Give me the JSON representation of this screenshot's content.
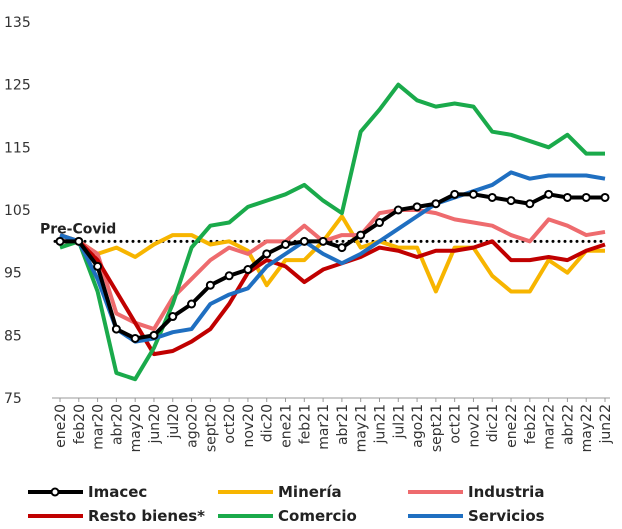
{
  "chart_data": {
    "type": "line",
    "categories": [
      "ene20",
      "feb20",
      "mar20",
      "abr20",
      "may20",
      "jun20",
      "jul20",
      "ago20",
      "sept20",
      "oct20",
      "nov20",
      "dic20",
      "ene21",
      "feb21",
      "mar21",
      "abr21",
      "may21",
      "jun21",
      "jul21",
      "ago21",
      "sept21",
      "oct21",
      "nov21",
      "dic21",
      "ene22",
      "feb22",
      "mar22",
      "abr22",
      "may22",
      "jun22"
    ],
    "series": [
      {
        "name": "Minería",
        "color": "#f7b500",
        "values": [
          101,
          100,
          98,
          99,
          97.5,
          99.5,
          101,
          101,
          99.5,
          100,
          98.5,
          93,
          97,
          97,
          100,
          104,
          99,
          100,
          99,
          99,
          92,
          99,
          99,
          94.5,
          92,
          92,
          97,
          95,
          98.5,
          98.5
        ]
      },
      {
        "name": "Industria",
        "color": "#ee6b6e",
        "values": [
          101,
          100,
          98,
          88.5,
          87,
          86,
          91,
          94,
          97,
          99,
          98,
          100,
          100,
          102.5,
          100,
          101,
          101,
          104.5,
          105,
          105,
          104.5,
          103.5,
          103,
          102.5,
          101,
          100,
          103.5,
          102.5,
          101,
          101.5
        ]
      },
      {
        "name": "Resto bienes*",
        "color": "#c00000",
        "values": [
          100,
          100,
          97,
          92,
          87,
          82,
          82.5,
          84,
          86,
          90,
          95,
          97,
          96,
          93.5,
          95.5,
          96.5,
          97.5,
          99,
          98.5,
          97.5,
          98.5,
          98.5,
          99,
          100,
          97,
          97,
          97.5,
          97,
          98.5,
          99.5
        ]
      },
      {
        "name": "Comercio",
        "color": "#1aaa4b",
        "values": [
          99,
          100,
          92,
          79,
          78,
          83,
          90,
          99,
          102.5,
          103,
          105.5,
          106.5,
          107.5,
          109,
          106.5,
          104.5,
          117.5,
          121,
          125,
          122.5,
          121.5,
          122,
          121.5,
          117.5,
          117,
          116,
          115,
          117,
          114,
          114
        ]
      },
      {
        "name": "Servicios",
        "color": "#1f6fc1",
        "values": [
          101,
          100,
          94,
          86,
          84,
          84.5,
          85.5,
          86,
          90,
          91.5,
          92.5,
          96,
          98,
          100,
          98,
          96.5,
          98,
          100,
          102,
          104,
          106,
          107,
          108,
          109,
          111,
          110,
          110.5,
          110.5,
          110.5,
          110
        ]
      },
      {
        "name": "Imacec",
        "color": "#000000",
        "markers": true,
        "values": [
          100,
          100,
          96,
          86,
          84.5,
          85,
          88,
          90,
          93,
          94.5,
          95.5,
          98,
          99.5,
          100,
          100,
          99,
          101,
          103,
          105,
          105.5,
          106,
          107.5,
          107.5,
          107,
          106.5,
          106,
          107.5,
          107,
          107,
          107
        ]
      }
    ],
    "legend_order": [
      5,
      0,
      1,
      2,
      3,
      4
    ],
    "reference_line": {
      "value": 100,
      "label": "Pre-Covid"
    },
    "ylim": [
      75,
      135
    ],
    "yticks": [
      75,
      85,
      95,
      105,
      115,
      125,
      135
    ],
    "grid": false
  }
}
